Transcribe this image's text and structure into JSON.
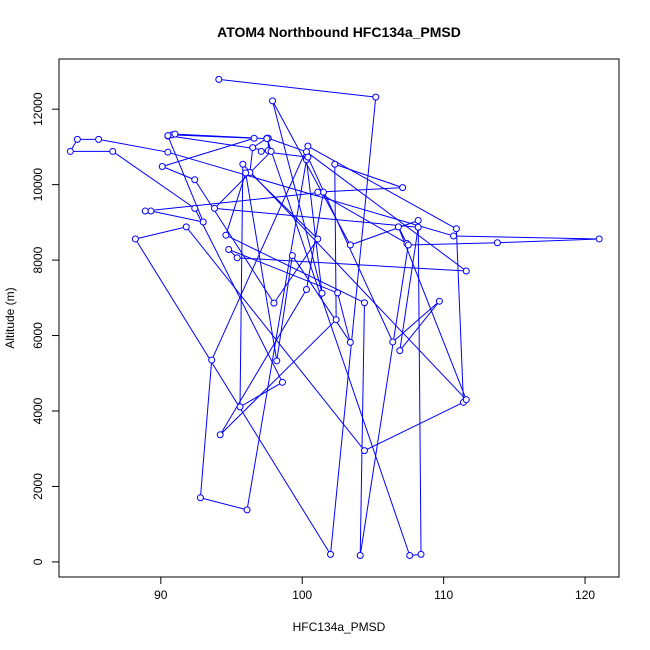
{
  "chart_data": {
    "type": "line",
    "title": "ATOM4 Northbound HFC134a_PMSD",
    "xlabel": "HFC134a_PMSD",
    "ylabel": "Altitude (m)",
    "xlim": [
      82.8,
      122.4
    ],
    "ylim": [
      -400,
      13330
    ],
    "xticks": [
      90,
      100,
      110,
      120
    ],
    "yticks": [
      0,
      2000,
      4000,
      6000,
      8000,
      10000,
      12000
    ],
    "line_color": "#0000ff",
    "marker": "open-circle",
    "grid": false,
    "series": [
      {
        "points": [
          [
            94.1,
            12790
          ],
          [
            105.2,
            12320
          ],
          [
            102.0,
            200
          ],
          [
            88.2,
            8560
          ],
          [
            91.8,
            8880
          ],
          [
            104.4,
            2950
          ],
          [
            111.4,
            4230
          ],
          [
            110.9,
            8830
          ],
          [
            100.4,
            11020
          ],
          [
            93.6,
            5350
          ],
          [
            92.8,
            1700
          ],
          [
            96.1,
            1380
          ],
          [
            100.3,
            10660
          ],
          [
            101.4,
            7120
          ],
          [
            97.9,
            12220
          ],
          [
            103.4,
            8400
          ],
          [
            108.2,
            9050
          ],
          [
            108.4,
            200
          ],
          [
            107.6,
            170
          ],
          [
            97.5,
            11230
          ],
          [
            96.5,
            10980
          ],
          [
            96.3,
            10320
          ],
          [
            101.1,
            8560
          ],
          [
            98.0,
            6860
          ],
          [
            92.4,
            10130
          ],
          [
            90.1,
            10480
          ],
          [
            96.6,
            11230
          ],
          [
            90.8,
            11320
          ],
          [
            90.5,
            11290
          ],
          [
            93.0,
            9010
          ],
          [
            89.3,
            9300
          ],
          [
            88.9,
            9300
          ],
          [
            101.5,
            9800
          ],
          [
            100.3,
            7220
          ],
          [
            94.2,
            3370
          ],
          [
            102.4,
            6420
          ],
          [
            102.3,
            10540
          ],
          [
            107.1,
            9920
          ],
          [
            101.1,
            9800
          ],
          [
            107.4,
            8440
          ],
          [
            106.8,
            8880
          ],
          [
            111.6,
            4300
          ],
          [
            95.8,
            10540
          ],
          [
            95.6,
            4110
          ],
          [
            98.6,
            4760
          ],
          [
            92.4,
            9370
          ],
          [
            86.6,
            10880
          ],
          [
            83.6,
            10880
          ],
          [
            84.1,
            11200
          ],
          [
            85.6,
            11200
          ],
          [
            90.5,
            10860
          ],
          [
            110.7,
            8640
          ],
          [
            121.0,
            8560
          ],
          [
            113.8,
            8460
          ],
          [
            107.5,
            8400
          ],
          [
            104.1,
            170
          ],
          [
            104.4,
            6870
          ],
          [
            94.6,
            8660
          ],
          [
            96.0,
            10310
          ],
          [
            98.2,
            5330
          ],
          [
            99.3,
            8120
          ],
          [
            103.4,
            5820
          ],
          [
            102.5,
            7130
          ],
          [
            94.8,
            8280
          ],
          [
            95.4,
            8060
          ],
          [
            111.6,
            7710
          ],
          [
            100.3,
            10870
          ],
          [
            97.6,
            11230
          ],
          [
            97.6,
            10900
          ],
          [
            90.5,
            11300
          ],
          [
            91.0,
            11340
          ],
          [
            97.5,
            11220
          ],
          [
            97.8,
            10880
          ],
          [
            93.8,
            9370
          ],
          [
            108.2,
            8870
          ],
          [
            106.9,
            5600
          ],
          [
            109.7,
            6910
          ],
          [
            106.4,
            5830
          ],
          [
            100.4,
            10730
          ],
          [
            97.1,
            10880
          ]
        ]
      }
    ]
  }
}
